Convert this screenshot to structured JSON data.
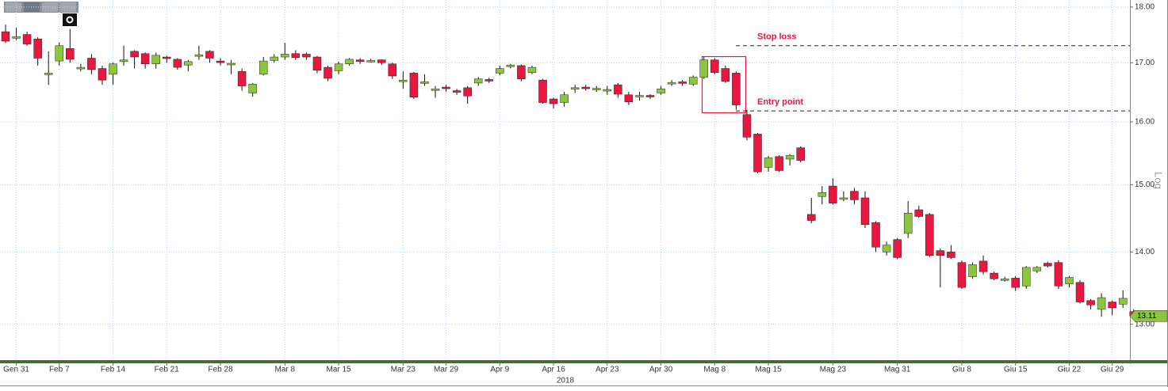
{
  "chart_data": {
    "type": "candlestick",
    "categories": [
      null,
      "Gen 31",
      null,
      null,
      null,
      "Feb 7",
      null,
      null,
      null,
      null,
      "Feb 14",
      null,
      null,
      null,
      null,
      "Feb 21",
      null,
      null,
      null,
      null,
      "Feb 28",
      null,
      null,
      null,
      null,
      null,
      "Mar 8",
      null,
      null,
      null,
      null,
      "Mar 15",
      null,
      null,
      null,
      null,
      null,
      "Mar 23",
      null,
      null,
      null,
      "Mar 29",
      null,
      null,
      null,
      null,
      "Apr 9",
      null,
      null,
      null,
      null,
      "Apr 16",
      null,
      null,
      null,
      null,
      "Apr 23",
      null,
      null,
      null,
      null,
      "Apr 30",
      null,
      null,
      null,
      null,
      "Mag 8",
      null,
      null,
      null,
      null,
      "Mag 15",
      null,
      null,
      null,
      null,
      null,
      "Mag 23",
      null,
      null,
      null,
      null,
      null,
      "Mag 31",
      null,
      null,
      null,
      null,
      null,
      "Giu 8",
      null,
      null,
      null,
      null,
      "Giu 15",
      null,
      null,
      null,
      null,
      "Giu 22",
      null,
      null,
      null,
      "Giu 29",
      null,
      null
    ],
    "open": [
      17.55,
      17.44,
      17.5,
      17.42,
      16.8,
      17.03,
      17.25,
      16.9,
      17.08,
      16.9,
      16.8,
      17.02,
      17.2,
      17.16,
      16.98,
      17.1,
      17.06,
      16.96,
      17.12,
      17.2,
      17.03,
      16.97,
      16.85,
      16.48,
      16.8,
      17.04,
      17.1,
      17.16,
      17.15,
      17.1,
      16.92,
      16.86,
      16.98,
      17.05,
      17.03,
      17.05,
      16.98,
      16.68,
      16.82,
      16.66,
      16.53,
      16.58,
      16.52,
      16.57,
      16.65,
      16.71,
      16.82,
      16.94,
      16.95,
      16.83,
      16.7,
      16.38,
      16.32,
      16.55,
      16.58,
      16.54,
      16.52,
      16.62,
      16.45,
      16.42,
      16.44,
      16.48,
      16.64,
      16.67,
      16.63,
      16.75,
      17.05,
      16.9,
      16.82,
      16.12,
      15.8,
      15.27,
      15.44,
      15.4,
      15.58,
      14.55,
      14.82,
      14.98,
      14.78,
      14.9,
      14.8,
      14.43,
      14.0,
      14.18,
      14.27,
      14.62,
      14.55,
      14.02,
      14.0,
      13.85,
      13.65,
      13.87,
      13.7,
      13.6,
      13.63,
      13.52,
      13.73,
      13.84,
      13.85,
      13.55,
      13.57,
      13.32,
      13.2,
      13.3,
      13.27,
      13.17
    ],
    "high": [
      17.68,
      17.62,
      17.55,
      17.45,
      17.2,
      17.36,
      17.6,
      16.98,
      17.15,
      16.95,
      17.0,
      17.3,
      17.22,
      17.18,
      17.18,
      17.12,
      17.08,
      17.05,
      17.3,
      17.22,
      17.08,
      17.05,
      16.9,
      16.65,
      17.1,
      17.15,
      17.35,
      17.22,
      17.18,
      17.12,
      16.95,
      17.02,
      17.08,
      17.08,
      17.07,
      17.06,
      17.0,
      16.85,
      16.84,
      16.8,
      16.6,
      16.62,
      16.55,
      16.6,
      16.75,
      16.74,
      16.95,
      16.98,
      16.97,
      16.95,
      16.72,
      16.4,
      16.5,
      16.62,
      16.62,
      16.6,
      16.6,
      16.65,
      16.5,
      16.5,
      16.46,
      16.6,
      16.7,
      16.7,
      16.78,
      17.1,
      17.08,
      16.95,
      16.85,
      16.2,
      15.82,
      15.45,
      15.46,
      15.48,
      15.6,
      14.8,
      14.98,
      15.1,
      14.9,
      14.95,
      14.9,
      14.45,
      14.15,
      14.2,
      14.75,
      14.68,
      14.57,
      14.05,
      14.1,
      13.88,
      13.85,
      13.95,
      13.72,
      13.65,
      13.66,
      13.8,
      13.8,
      13.86,
      13.88,
      13.66,
      13.6,
      13.34,
      13.42,
      13.32,
      13.46,
      13.2
    ],
    "low": [
      17.35,
      17.4,
      17.3,
      16.95,
      16.62,
      16.95,
      17.0,
      16.85,
      16.8,
      16.62,
      16.62,
      16.95,
      16.9,
      16.9,
      16.9,
      17.0,
      16.88,
      16.85,
      17.05,
      17.0,
      16.95,
      16.8,
      16.52,
      16.42,
      16.78,
      17.0,
      17.05,
      17.05,
      17.05,
      16.82,
      16.68,
      16.8,
      16.95,
      16.98,
      17.0,
      16.96,
      16.72,
      16.55,
      16.38,
      16.6,
      16.4,
      16.5,
      16.45,
      16.3,
      16.6,
      16.65,
      16.78,
      16.9,
      16.68,
      16.8,
      16.3,
      16.22,
      16.25,
      16.48,
      16.52,
      16.5,
      16.45,
      16.4,
      16.28,
      16.35,
      16.38,
      16.45,
      16.6,
      16.6,
      16.6,
      16.72,
      16.8,
      16.65,
      16.2,
      15.7,
      15.18,
      15.2,
      15.2,
      15.3,
      15.35,
      14.42,
      14.7,
      14.7,
      14.75,
      14.7,
      14.35,
      14.0,
      13.95,
      13.9,
      14.2,
      14.5,
      13.93,
      13.5,
      13.9,
      13.48,
      13.62,
      13.68,
      13.6,
      13.58,
      13.45,
      13.48,
      13.7,
      13.78,
      13.48,
      13.5,
      13.28,
      13.2,
      13.1,
      13.12,
      13.22,
      13.08
    ],
    "close": [
      17.38,
      17.46,
      17.33,
      17.08,
      16.82,
      17.3,
      17.06,
      16.92,
      16.88,
      16.7,
      16.98,
      17.05,
      17.1,
      16.98,
      17.13,
      17.08,
      16.92,
      17.02,
      17.14,
      17.08,
      17.01,
      16.99,
      16.6,
      16.63,
      17.03,
      17.1,
      17.15,
      17.09,
      17.1,
      16.87,
      16.73,
      16.98,
      17.06,
      17.04,
      17.04,
      17.0,
      16.77,
      16.7,
      16.41,
      16.67,
      16.55,
      16.56,
      16.5,
      16.43,
      16.72,
      16.7,
      16.9,
      16.96,
      16.72,
      16.92,
      16.32,
      16.3,
      16.45,
      16.57,
      16.56,
      16.56,
      16.54,
      16.46,
      16.33,
      16.44,
      16.42,
      16.55,
      16.66,
      16.65,
      16.75,
      17.05,
      16.83,
      16.68,
      16.28,
      15.75,
      15.2,
      15.42,
      15.22,
      15.46,
      15.38,
      14.46,
      14.88,
      14.72,
      14.8,
      14.77,
      14.4,
      14.07,
      14.1,
      13.92,
      14.57,
      14.52,
      13.95,
      13.95,
      13.92,
      13.5,
      13.82,
      13.72,
      13.62,
      13.62,
      13.5,
      13.78,
      13.78,
      13.8,
      13.52,
      13.64,
      13.3,
      13.26,
      13.36,
      13.22,
      13.35,
      13.11
    ],
    "up_color": "#8cc63f",
    "down_color": "#e8173f",
    "ylim": [
      12.53,
      18.13
    ],
    "yticks": [
      {
        "value": 13,
        "label": "13.00"
      },
      {
        "value": 14,
        "label": "14.00"
      },
      {
        "value": 15,
        "label": "15.00"
      },
      {
        "value": 16,
        "label": "16.00"
      },
      {
        "value": 17,
        "label": "17.00"
      },
      {
        "value": 18,
        "label": "18.00"
      }
    ],
    "log_scale": true,
    "scale_label": "Log",
    "grid": true,
    "x_sublabel": "2018",
    "annotations": [
      {
        "text": "Stop loss",
        "value": 17.3
      },
      {
        "text": "Entry point",
        "value": 16.18
      }
    ]
  }
}
